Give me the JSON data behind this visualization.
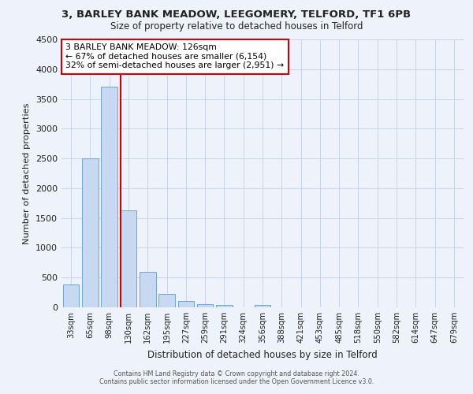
{
  "title": "3, BARLEY BANK MEADOW, LEEGOMERY, TELFORD, TF1 6PB",
  "subtitle": "Size of property relative to detached houses in Telford",
  "xlabel": "Distribution of detached houses by size in Telford",
  "ylabel": "Number of detached properties",
  "bar_labels": [
    "33sqm",
    "65sqm",
    "98sqm",
    "130sqm",
    "162sqm",
    "195sqm",
    "227sqm",
    "259sqm",
    "291sqm",
    "324sqm",
    "356sqm",
    "388sqm",
    "421sqm",
    "453sqm",
    "485sqm",
    "518sqm",
    "550sqm",
    "582sqm",
    "614sqm",
    "647sqm",
    "679sqm"
  ],
  "bar_values": [
    380,
    2500,
    3700,
    1630,
    590,
    230,
    100,
    55,
    45,
    0,
    45,
    0,
    0,
    0,
    0,
    0,
    0,
    0,
    0,
    0,
    0
  ],
  "bar_color": "#c6d9f1",
  "bar_edge_color": "#5b9bd5",
  "grid_color": "#c8d4e8",
  "background_color": "#eef2fa",
  "vline_color": "#cc0000",
  "vline_bar_index": 3,
  "annotation_title": "3 BARLEY BANK MEADOW: 126sqm",
  "annotation_line1": "← 67% of detached houses are smaller (6,154)",
  "annotation_line2": "32% of semi-detached houses are larger (2,951) →",
  "annotation_box_color": "#ffffff",
  "annotation_box_edge": "#cc0000",
  "ylim": [
    0,
    4500
  ],
  "yticks": [
    0,
    500,
    1000,
    1500,
    2000,
    2500,
    3000,
    3500,
    4000,
    4500
  ],
  "footer1": "Contains HM Land Registry data © Crown copyright and database right 2024.",
  "footer2": "Contains public sector information licensed under the Open Government Licence v3.0."
}
